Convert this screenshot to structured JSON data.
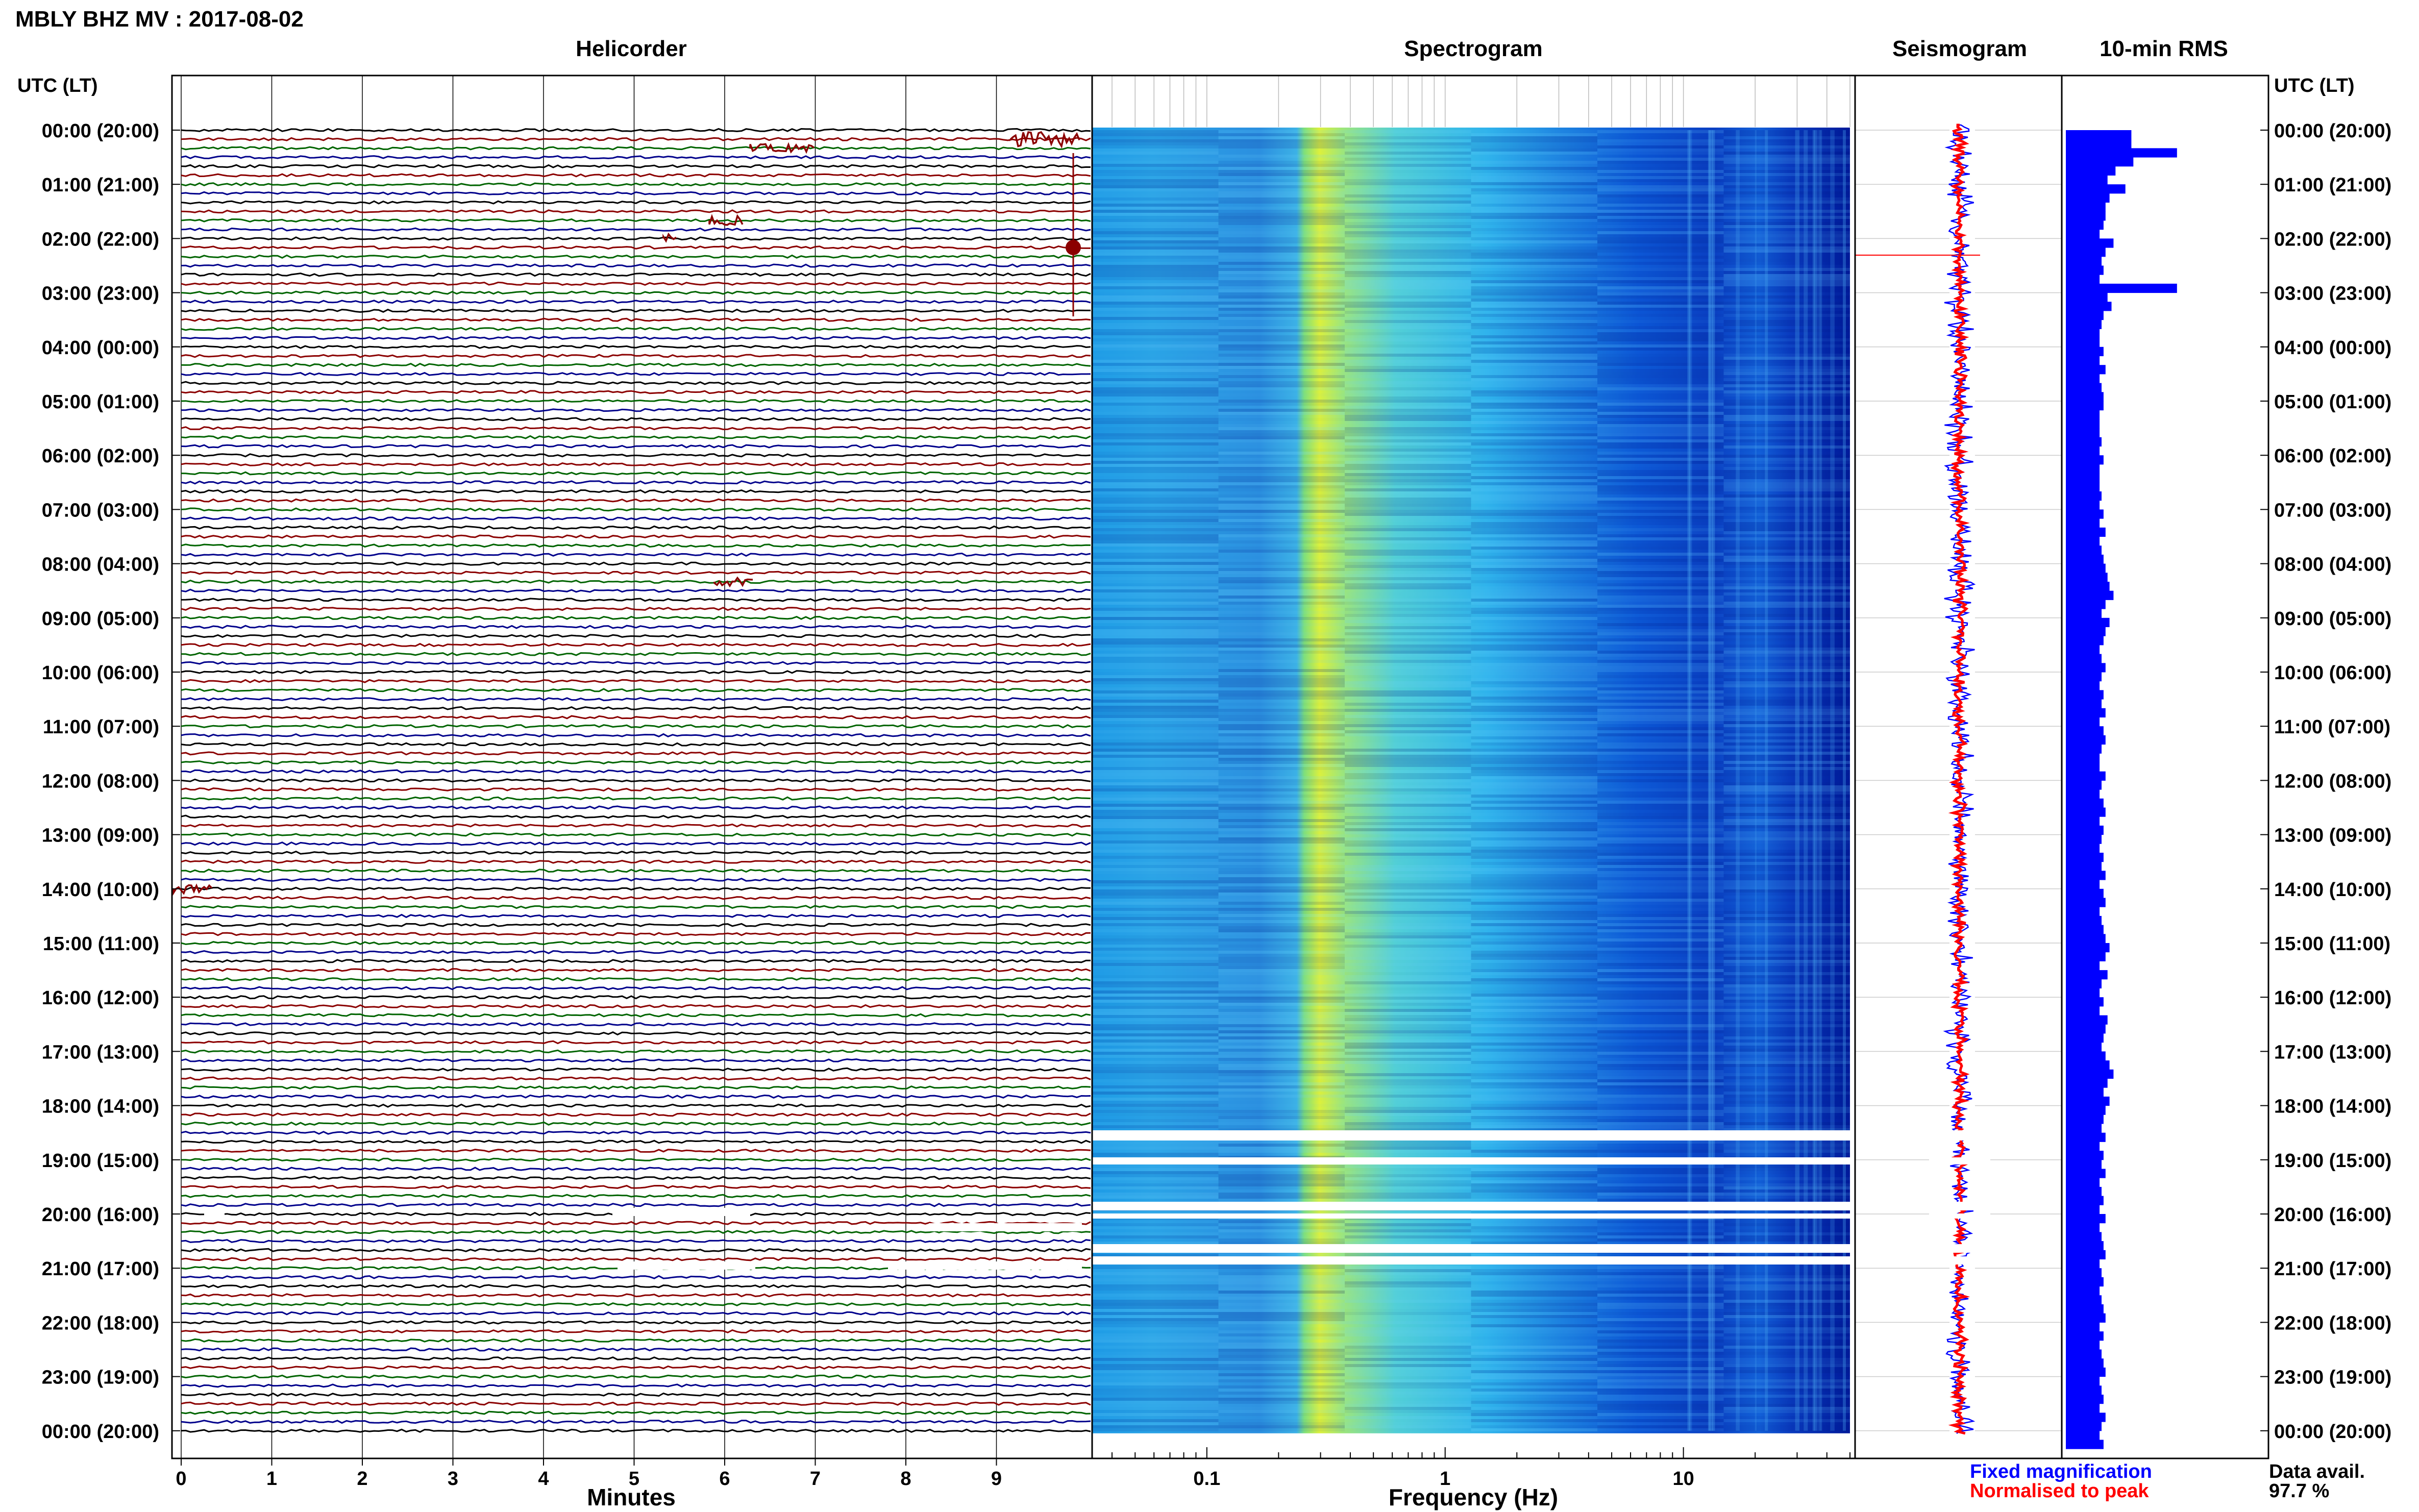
{
  "header": {
    "title": "MBLY BHZ MV : 2017-08-02",
    "utc_label_left": "UTC (LT)",
    "utc_label_right": "UTC (LT)"
  },
  "panels": {
    "helicorder": "Helicorder",
    "spectrogram": "Spectrogram",
    "seismogram": "Seismogram",
    "rms": "10-min RMS"
  },
  "legend": {
    "fixed": "Fixed magnification",
    "normalised": "Normalised to peak",
    "data_avail_label": "Data avail.",
    "data_avail_value": "97.7 %"
  },
  "colors": {
    "trace_cycle": [
      "#000000",
      "#8b0000",
      "#006400",
      "#00008b"
    ],
    "rms_bar": "#0000ff",
    "fixed_text": "#0000ff",
    "normalised_text": "#ff0000",
    "seis_fixed": "#0000ff",
    "seis_norm": "#ff0000"
  },
  "chart_data": [
    {
      "type": "heatmap",
      "name": "Helicorder",
      "xlabel": "Minutes",
      "x_ticks": [
        "0",
        "1",
        "2",
        "3",
        "4",
        "5",
        "6",
        "7",
        "8",
        "9"
      ],
      "xlim": [
        0,
        10
      ],
      "ylabel": "UTC (LT)",
      "y_ticks": [
        "00:00 (20:00)",
        "01:00 (21:00)",
        "02:00 (22:00)",
        "03:00 (23:00)",
        "04:00 (00:00)",
        "05:00 (01:00)",
        "06:00 (02:00)",
        "07:00 (03:00)",
        "08:00 (04:00)",
        "09:00 (05:00)",
        "10:00 (06:00)",
        "11:00 (07:00)",
        "12:00 (08:00)",
        "13:00 (09:00)",
        "14:00 (10:00)",
        "15:00 (11:00)",
        "16:00 (12:00)",
        "17:00 (13:00)",
        "18:00 (14:00)",
        "19:00 (15:00)",
        "20:00 (16:00)",
        "21:00 (17:00)",
        "22:00 (18:00)",
        "23:00 (19:00)",
        "00:00 (20:00)"
      ],
      "traces_per_hour": 6
    },
    {
      "type": "heatmap",
      "name": "Spectrogram",
      "xlabel": "Frequency (Hz)",
      "x_scale": "log",
      "x_ticks": [
        "0.1",
        "1",
        "10"
      ],
      "xlim": [
        0.033,
        50
      ],
      "dominant_band_hz": [
        0.2,
        0.35
      ],
      "data_gaps_utc": [
        "18:40",
        "18:55",
        "19:50",
        "19:55",
        "20:30",
        "20:55"
      ]
    },
    {
      "type": "line",
      "name": "Seismogram",
      "series": [
        {
          "name": "Fixed magnification"
        },
        {
          "name": "Normalised to peak"
        }
      ]
    },
    {
      "type": "bar",
      "name": "10-min RMS",
      "orientation": "horizontal",
      "values": [
        33,
        33,
        56,
        34,
        25,
        21,
        30,
        22,
        20,
        20,
        19,
        17,
        24,
        20,
        18,
        19,
        17,
        56,
        21,
        23,
        19,
        18,
        17,
        17,
        19,
        17,
        20,
        17,
        18,
        19,
        19,
        17,
        17,
        17,
        18,
        17,
        19,
        17,
        17,
        17,
        18,
        17,
        19,
        17,
        20,
        17,
        18,
        19,
        20,
        21,
        22,
        24,
        20,
        18,
        22,
        20,
        19,
        17,
        18,
        20,
        18,
        17,
        19,
        18,
        20,
        17,
        19,
        20,
        18,
        17,
        17,
        20,
        18,
        17,
        19,
        20,
        17,
        19,
        18,
        17,
        19,
        18,
        20,
        17,
        19,
        20,
        17,
        18,
        19,
        20,
        22,
        20,
        17,
        21,
        18,
        17,
        19,
        17,
        21,
        20,
        19,
        18,
        20,
        22,
        24,
        21,
        19,
        22,
        20,
        19,
        18,
        20,
        17,
        19,
        18,
        20,
        17,
        18,
        19,
        17,
        20,
        17,
        18,
        19,
        20,
        17,
        18,
        19,
        17,
        18,
        19,
        20,
        17,
        19,
        17,
        18,
        19,
        20,
        17,
        18,
        19,
        17,
        20,
        18,
        17,
        19
      ],
      "bin_minutes": 10,
      "xlim": [
        0,
        100
      ]
    }
  ]
}
